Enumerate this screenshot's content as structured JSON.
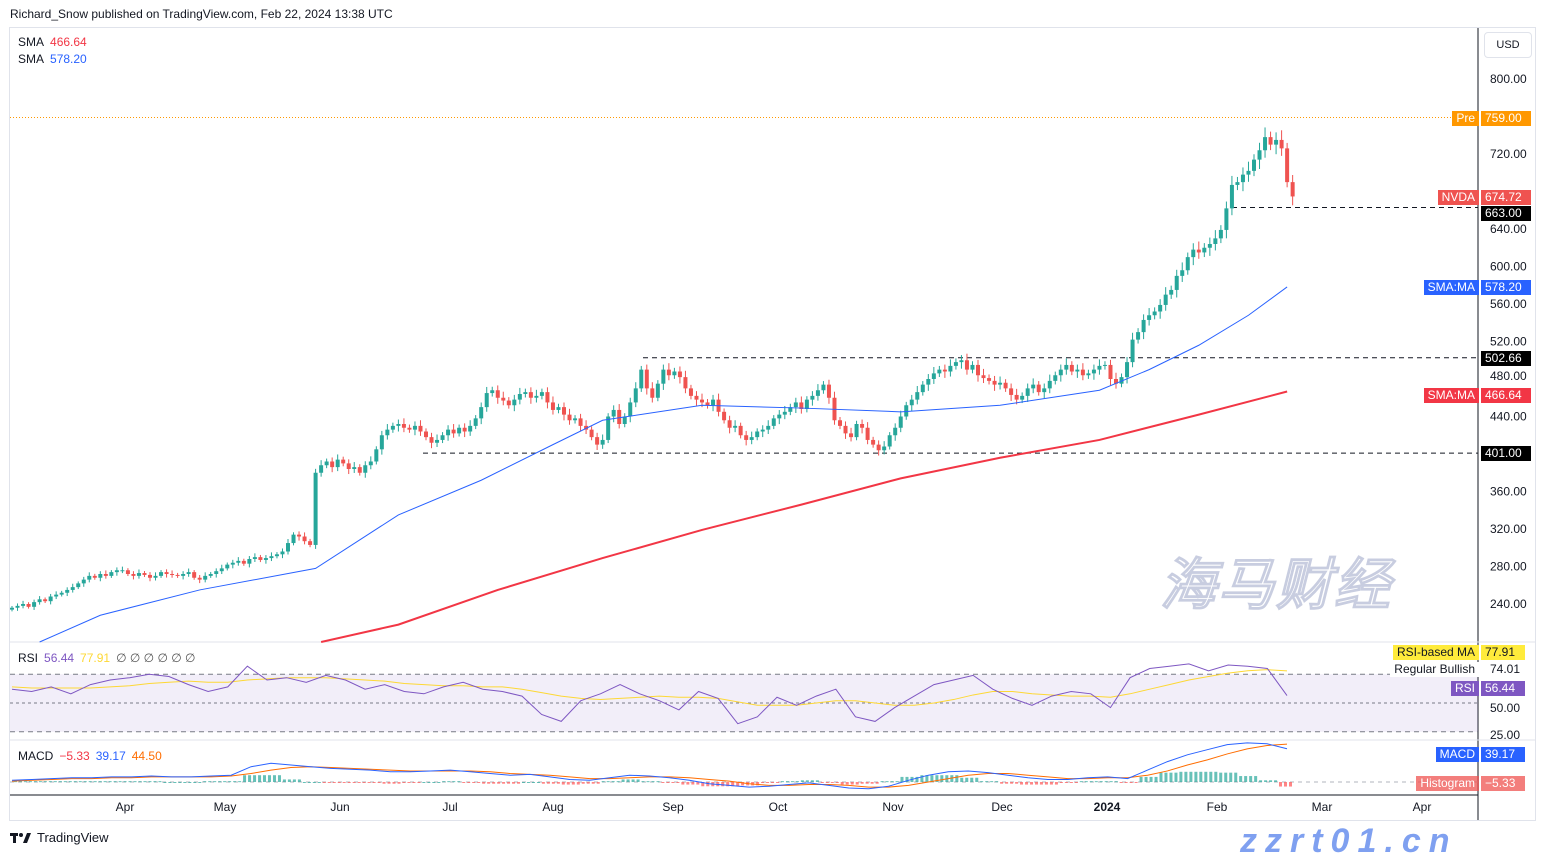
{
  "header": {
    "publisher": "Richard_Snow published on TradingView.com, Feb 22, 2024 13:38 UTC"
  },
  "footer": {
    "brand": "TradingView"
  },
  "watermark": {
    "cn": "海马财经",
    "url": "zzrt01.cn"
  },
  "colors": {
    "up": "#26a69a",
    "down": "#ef5350",
    "sma50": "#2962ff",
    "sma200": "#f23645",
    "rsi": "#7e57c2",
    "rsi_ma": "#fdd835",
    "macd": "#2962ff",
    "signal": "#ff6d00",
    "pre": "#ff9800"
  },
  "legend": {
    "sma1_label": "SMA",
    "sma1_value": "466.64",
    "sma2_label": "SMA",
    "sma2_value": "578.20",
    "rsi_label": "RSI",
    "rsi_value": "56.44",
    "rsi_ma_value": "77.91",
    "rsi_extras": "∅ ∅ ∅ ∅ ∅ ∅",
    "macd_label": "MACD",
    "macd_hist": "−5.33",
    "macd_value": "39.17",
    "macd_signal": "44.50"
  },
  "axis": {
    "currency": "USD",
    "price_ticks": [
      "800.00",
      "720.00",
      "640.00",
      "600.00",
      "560.00",
      "520.00",
      "480.00",
      "440.00",
      "360.00",
      "320.00",
      "280.00",
      "240.00"
    ],
    "rsi_ticks": [
      "50.00",
      "25.00"
    ],
    "time_ticks": [
      "Apr",
      "May",
      "Jun",
      "Jul",
      "Aug",
      "Sep",
      "Oct",
      "Nov",
      "Dec",
      "2024",
      "Feb",
      "Mar",
      "Apr"
    ]
  },
  "tags": {
    "pre_label": "Pre",
    "pre_value": "759.00",
    "symbol_label": "NVDA",
    "symbol_value": "674.72",
    "level_663": "663.00",
    "sma50_label": "SMA:MA",
    "sma50_value": "578.20",
    "level_502": "502.66",
    "sma200_label": "SMA:MA",
    "sma200_value": "466.64",
    "level_401": "401.00",
    "rsi_ma_label": "RSI-based MA",
    "rsi_ma_value": "77.91",
    "bullish_label": "Regular Bullish",
    "bullish_value": "74.01",
    "rsi_label": "RSI",
    "rsi_value": "56.44",
    "macd_label": "MACD",
    "macd_value": "39.17",
    "hist_label": "Histogram",
    "hist_value": "−5.33"
  },
  "chart_data": {
    "type": "candlestick",
    "symbol": "NVDA",
    "currency": "USD",
    "ylim": [
      200,
      830
    ],
    "closes": [
      236,
      238,
      240,
      237,
      242,
      245,
      243,
      248,
      250,
      252,
      255,
      258,
      262,
      266,
      270,
      268,
      272,
      270,
      274,
      276,
      276,
      272,
      270,
      273,
      271,
      268,
      270,
      274,
      272,
      271,
      270,
      272,
      274,
      268,
      266,
      270,
      272,
      275,
      278,
      282,
      284,
      286,
      283,
      288,
      290,
      287,
      289,
      291,
      293,
      296,
      305,
      314,
      312,
      307,
      303,
      380,
      388,
      392,
      386,
      394,
      390,
      384,
      386,
      380,
      388,
      392,
      405,
      420,
      426,
      430,
      432,
      428,
      426,
      430,
      424,
      418,
      412,
      415,
      420,
      426,
      422,
      428,
      424,
      430,
      438,
      450,
      465,
      468,
      460,
      457,
      452,
      458,
      464,
      466,
      460,
      462,
      466,
      455,
      447,
      450,
      442,
      436,
      438,
      430,
      426,
      418,
      410,
      415,
      440,
      447,
      432,
      440,
      455,
      470,
      490,
      470,
      460,
      475,
      490,
      484,
      488,
      482,
      470,
      462,
      458,
      455,
      452,
      458,
      445,
      436,
      428,
      430,
      420,
      415,
      418,
      424,
      426,
      430,
      438,
      442,
      445,
      450,
      455,
      448,
      458,
      462,
      468,
      474,
      460,
      436,
      430,
      422,
      418,
      432,
      428,
      415,
      410,
      404,
      408,
      420,
      428,
      440,
      452,
      458,
      466,
      474,
      480,
      486,
      490,
      488,
      494,
      498,
      500,
      490,
      495,
      484,
      481,
      478,
      474,
      476,
      470,
      463,
      458,
      462,
      470,
      474,
      466,
      470,
      478,
      484,
      490,
      495,
      488,
      490,
      484,
      486,
      490,
      494,
      495,
      480,
      475,
      482,
      498,
      522,
      530,
      543,
      548,
      552,
      559,
      570,
      575,
      590,
      596,
      610,
      618,
      615,
      620,
      624,
      630,
      639,
      662,
      687,
      690,
      698,
      702,
      714,
      724,
      738,
      730,
      735,
      726,
      690,
      674.72
    ],
    "sma50": [
      [
        5,
        198
      ],
      [
        16,
        228
      ],
      [
        34,
        255
      ],
      [
        55,
        278
      ],
      [
        70,
        335
      ],
      [
        85,
        372
      ],
      [
        98,
        410
      ],
      [
        107,
        436
      ],
      [
        125,
        452
      ],
      [
        143,
        449
      ],
      [
        161,
        445
      ],
      [
        179,
        452
      ],
      [
        197,
        468
      ],
      [
        206,
        490
      ],
      [
        215,
        516
      ],
      [
        224,
        548
      ],
      [
        231,
        578.2
      ]
    ],
    "sma200": [
      [
        56,
        199
      ],
      [
        70,
        218
      ],
      [
        88,
        255
      ],
      [
        107,
        289
      ],
      [
        125,
        319
      ],
      [
        143,
        346
      ],
      [
        161,
        374
      ],
      [
        179,
        396
      ],
      [
        197,
        415
      ],
      [
        215,
        442
      ],
      [
        231,
        466.64
      ]
    ],
    "levels": [
      {
        "value": 759.0,
        "style": "dotted",
        "label": "Pre"
      },
      {
        "value": 663.0,
        "style": "dashed"
      },
      {
        "value": 502.66,
        "style": "dashed"
      },
      {
        "value": 401.0,
        "style": "dashed"
      }
    ],
    "rsi": {
      "levels": [
        75,
        50,
        25
      ],
      "values": [
        62,
        60,
        64,
        58,
        66,
        70,
        72,
        75,
        73,
        66,
        60,
        64,
        82,
        70,
        72,
        68,
        74,
        70,
        62,
        66,
        60,
        58,
        64,
        68,
        62,
        60,
        56,
        40,
        34,
        52,
        58,
        66,
        58,
        52,
        44,
        60,
        54,
        32,
        38,
        55,
        48,
        56,
        62,
        38,
        34,
        46,
        56,
        66,
        70,
        74,
        62,
        54,
        48,
        56,
        60,
        58,
        46,
        72,
        80,
        82,
        84,
        78,
        83,
        82,
        80,
        56.44
      ],
      "ma": [
        64,
        63,
        63,
        63,
        63,
        64,
        65,
        67,
        68,
        69,
        68,
        68,
        70,
        71,
        72,
        72,
        72,
        71,
        70,
        69,
        67,
        66,
        65,
        65,
        64,
        64,
        62,
        59,
        56,
        54,
        53,
        54,
        55,
        56,
        55,
        55,
        54,
        51,
        48,
        48,
        48,
        50,
        52,
        52,
        50,
        48,
        48,
        50,
        53,
        57,
        60,
        60,
        58,
        57,
        56,
        56,
        55,
        58,
        62,
        66,
        70,
        73,
        76,
        78,
        79,
        77.91
      ]
    },
    "macd": {
      "macd": [
        2,
        3,
        4,
        5,
        5,
        6,
        6,
        7,
        6,
        6,
        7,
        8,
        18,
        22,
        20,
        18,
        16,
        15,
        14,
        12,
        12,
        13,
        14,
        12,
        10,
        8,
        9,
        6,
        3,
        2,
        5,
        8,
        7,
        5,
        2,
        -2,
        -4,
        -6,
        -5,
        -3,
        -1,
        -4,
        -7,
        -8,
        -5,
        2,
        8,
        12,
        13,
        11,
        8,
        5,
        3,
        3,
        5,
        6,
        4,
        14,
        24,
        32,
        38,
        44,
        46,
        45,
        39.17
      ],
      "signal": [
        1,
        2,
        3,
        4,
        4,
        5,
        5,
        6,
        6,
        6,
        6,
        7,
        10,
        14,
        17,
        18,
        17,
        16,
        15,
        14,
        13,
        13,
        13,
        13,
        12,
        10,
        9,
        8,
        6,
        4,
        4,
        5,
        6,
        6,
        5,
        3,
        1,
        -2,
        -4,
        -4,
        -3,
        -3,
        -4,
        -6,
        -6,
        -4,
        0,
        4,
        8,
        10,
        10,
        8,
        6,
        4,
        4,
        5,
        5,
        8,
        13,
        20,
        26,
        33,
        39,
        43,
        44.5
      ]
    }
  }
}
